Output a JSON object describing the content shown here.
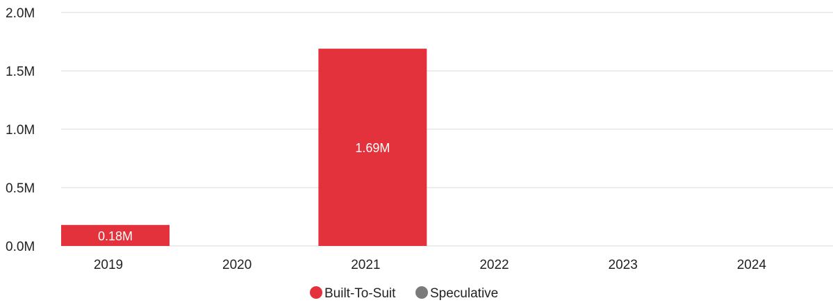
{
  "chart_data": {
    "type": "bar",
    "categories": [
      "2019",
      "2020",
      "2021",
      "2022",
      "2023",
      "2024"
    ],
    "series": [
      {
        "name": "Built-To-Suit",
        "color": "#e3323b",
        "values": [
          0.18,
          0,
          1.69,
          0,
          0,
          0
        ],
        "labels": [
          "0.18M",
          "",
          "1.69M",
          "",
          "",
          ""
        ]
      },
      {
        "name": "Speculative",
        "color": "#7a7a7a",
        "values": [
          0,
          0,
          0,
          0,
          0,
          0
        ],
        "labels": [
          "",
          "",
          "",
          "",
          "",
          ""
        ]
      }
    ],
    "ylim": [
      0,
      2.0
    ],
    "yticks": [
      0,
      0.5,
      1.0,
      1.5,
      2.0
    ],
    "ytick_labels": [
      "0.0M",
      "0.5M",
      "1.0M",
      "1.5M",
      "2.0M"
    ],
    "grid": true,
    "legend": "bottom-center",
    "colors": {
      "grid": "#e6e6e6",
      "text": "#222222",
      "value_label": "#ffffff"
    }
  }
}
